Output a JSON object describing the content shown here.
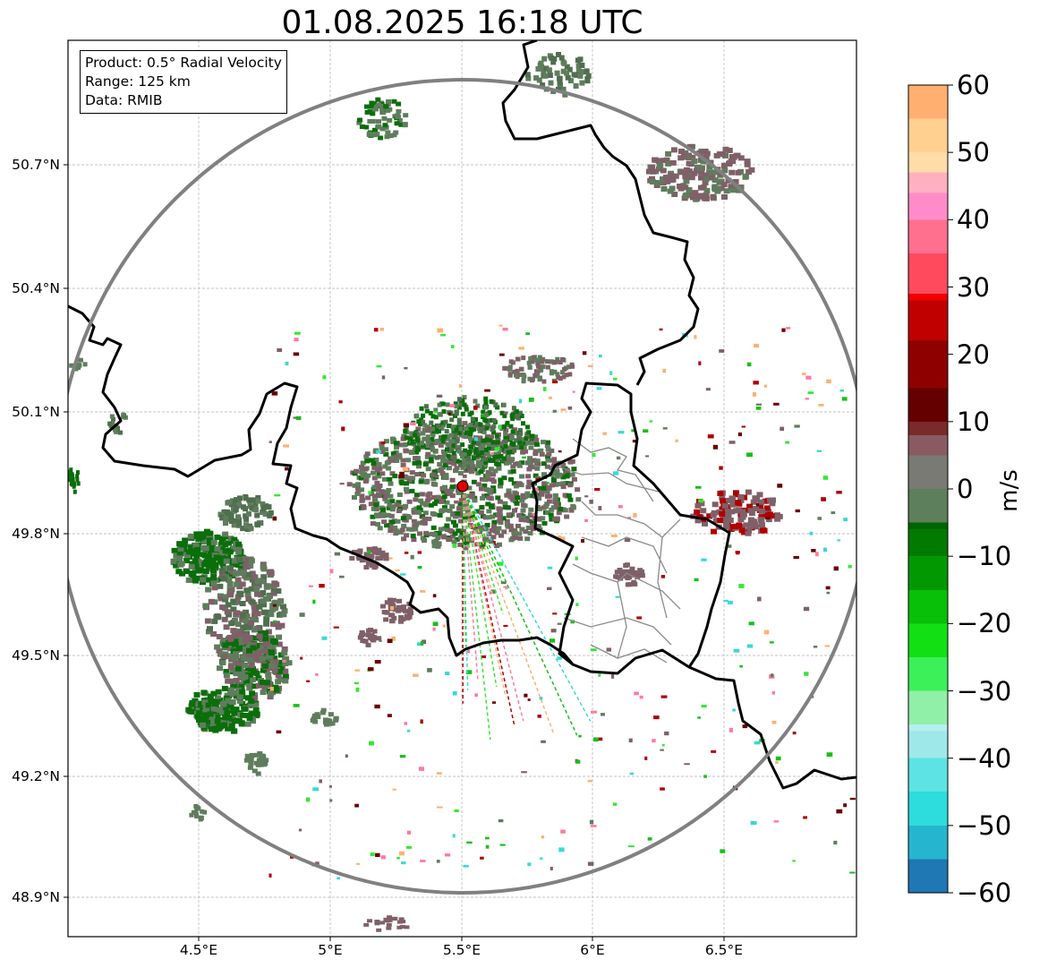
{
  "title": "01.08.2025 16:18 UTC",
  "info": {
    "product": "Product: 0.5° Radial Velocity",
    "range": "Range: 125 km",
    "source": "Data: RMIB"
  },
  "axes": {
    "lat_ticks": [
      "50.7°N",
      "50.4°N",
      "50.1°N",
      "49.8°N",
      "49.5°N",
      "49.2°N",
      "48.9°N"
    ],
    "lon_ticks": [
      "4.5°E",
      "5°E",
      "5.5°E",
      "6°E",
      "6.5°E"
    ]
  },
  "colorbar": {
    "unit": "m/s",
    "min": -60,
    "max": 60,
    "ticks": [
      "60",
      "50",
      "40",
      "30",
      "20",
      "10",
      "0",
      "−10",
      "−20",
      "−30",
      "−40",
      "−50",
      "−60"
    ],
    "stops": [
      {
        "v": -60,
        "c": "#1f77b4"
      },
      {
        "v": -55,
        "c": "#26b5cf"
      },
      {
        "v": -50,
        "c": "#2ddcdc"
      },
      {
        "v": -45,
        "c": "#5de3e3"
      },
      {
        "v": -40,
        "c": "#9ee8ea"
      },
      {
        "v": -36,
        "c": "#b6eef0"
      },
      {
        "v": -35,
        "c": "#90f0a8"
      },
      {
        "v": -30,
        "c": "#3cf05a"
      },
      {
        "v": -25,
        "c": "#12e012"
      },
      {
        "v": -20,
        "c": "#07c007"
      },
      {
        "v": -15,
        "c": "#029802"
      },
      {
        "v": -10,
        "c": "#017a01"
      },
      {
        "v": -6,
        "c": "#006400"
      },
      {
        "v": -5,
        "c": "#5d7f5b"
      },
      {
        "v": 0,
        "c": "#7a7a74"
      },
      {
        "v": 5,
        "c": "#8a5a62"
      },
      {
        "v": 8,
        "c": "#7a2a2a"
      },
      {
        "v": 10,
        "c": "#640000"
      },
      {
        "v": 15,
        "c": "#8e0000"
      },
      {
        "v": 22,
        "c": "#c00000"
      },
      {
        "v": 28,
        "c": "#f00000"
      },
      {
        "v": 29,
        "c": "#ff4a5e"
      },
      {
        "v": 35,
        "c": "#ff6f8e"
      },
      {
        "v": 40,
        "c": "#ff8cc8"
      },
      {
        "v": 44,
        "c": "#ffb0c0"
      },
      {
        "v": 47,
        "c": "#ffdca8"
      },
      {
        "v": 50,
        "c": "#ffd090"
      },
      {
        "v": 55,
        "c": "#ffb070"
      },
      {
        "v": 60,
        "c": "#ff9a5a"
      }
    ]
  },
  "colors": {
    "range_ring": "#808080",
    "border": "#000000",
    "admin_border": "#909090",
    "grid": "#b0b0b0",
    "radar_site": "#e00000"
  }
}
